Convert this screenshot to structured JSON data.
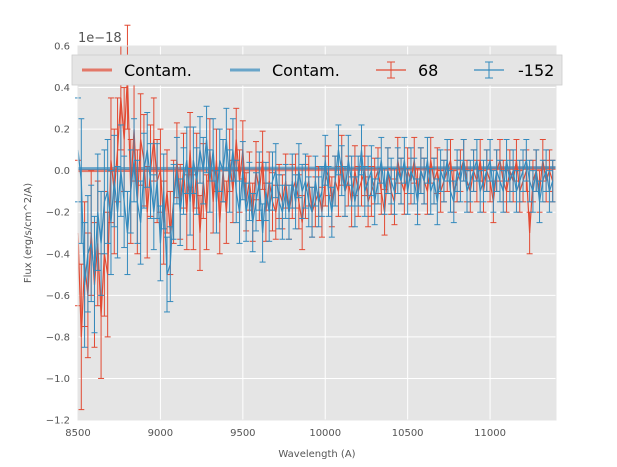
{
  "chart_data": {
    "type": "line",
    "xlabel": "Wavelength (A)",
    "ylabel": "Flux (erg/s/cm^2/A)",
    "offset_text": "1e−18",
    "xlim": [
      8500,
      11400
    ],
    "ylim": [
      -1.2,
      0.6
    ],
    "xticks": [
      8500,
      9000,
      9500,
      10000,
      10500,
      11000
    ],
    "yticks": [
      -1.2,
      -1.0,
      -0.8,
      -0.6,
      -0.4,
      -0.2,
      0.0,
      0.2,
      0.4,
      0.6
    ],
    "ytick_labels": [
      "−1.2",
      "−1.0",
      "−0.8",
      "−0.6",
      "−0.4",
      "−0.2",
      "0.0",
      "0.2",
      "0.4",
      "0.6"
    ],
    "grid": true,
    "legend_position": "top",
    "colors": {
      "red": "#E24A33",
      "blue": "#348ABD",
      "background": "#E5E5E5",
      "grid": "#FFFFFF"
    },
    "x": [
      8500,
      8520,
      8540,
      8560,
      8580,
      8600,
      8620,
      8640,
      8660,
      8680,
      8700,
      8720,
      8740,
      8760,
      8780,
      8800,
      8820,
      8840,
      8860,
      8880,
      8900,
      8920,
      8940,
      8960,
      8980,
      9000,
      9020,
      9040,
      9060,
      9080,
      9100,
      9120,
      9140,
      9160,
      9180,
      9200,
      9220,
      9240,
      9260,
      9280,
      9300,
      9320,
      9340,
      9360,
      9380,
      9400,
      9420,
      9440,
      9460,
      9480,
      9500,
      9520,
      9540,
      9560,
      9580,
      9600,
      9620,
      9640,
      9660,
      9680,
      9700,
      9720,
      9740,
      9760,
      9780,
      9800,
      9820,
      9840,
      9860,
      9880,
      9900,
      9920,
      9940,
      9960,
      9980,
      10000,
      10020,
      10040,
      10060,
      10080,
      10100,
      10120,
      10140,
      10160,
      10180,
      10200,
      10220,
      10240,
      10260,
      10280,
      10300,
      10320,
      10340,
      10360,
      10380,
      10400,
      10420,
      10440,
      10460,
      10480,
      10500,
      10520,
      10540,
      10560,
      10580,
      10600,
      10620,
      10640,
      10660,
      10680,
      10700,
      10720,
      10740,
      10760,
      10780,
      10800,
      10820,
      10840,
      10860,
      10880,
      10900,
      10920,
      10940,
      10960,
      10980,
      11000,
      11020,
      11040,
      11060,
      11080,
      11100,
      11120,
      11140,
      11160,
      11180,
      11200,
      11220,
      11240,
      11260,
      11280,
      11300,
      11320,
      11340,
      11360,
      11380
    ],
    "series": [
      {
        "name": "Contam.",
        "kind": "line",
        "color": "#E24A33",
        "x": [
          8500,
          11400
        ],
        "values": [
          0.0,
          0.01
        ]
      },
      {
        "name": "Contam.",
        "kind": "line",
        "color": "#348ABD",
        "x": [
          8500,
          11400
        ],
        "values": [
          0.01,
          0.015
        ]
      },
      {
        "name": "68",
        "kind": "errorbar",
        "color": "#E24A33",
        "values": [
          -0.3,
          -0.8,
          -0.45,
          -0.6,
          -0.3,
          -0.55,
          -0.35,
          -0.7,
          -0.4,
          -0.5,
          0.05,
          -0.1,
          0.1,
          0.35,
          0.15,
          0.45,
          -0.1,
          0.2,
          -0.15,
          0.15,
          0.05,
          -0.2,
          0.0,
          0.15,
          -0.05,
          0.0,
          -0.25,
          -0.1,
          -0.3,
          -0.15,
          0.05,
          -0.15,
          0.0,
          -0.2,
          0.1,
          -0.2,
          0.0,
          -0.3,
          -0.05,
          -0.2,
          0.1,
          -0.15,
          0.05,
          -0.25,
          0.0,
          -0.2,
          0.05,
          -0.1,
          0.15,
          -0.05,
          0.1,
          -0.15,
          -0.05,
          -0.2,
          0.0,
          -0.1,
          0.05,
          -0.2,
          -0.05,
          -0.15,
          -0.2,
          -0.1,
          -0.15,
          -0.05,
          -0.2,
          -0.1,
          -0.05,
          -0.15,
          -0.25,
          -0.1,
          -0.05,
          -0.2,
          -0.15,
          -0.1,
          -0.2,
          -0.05,
          0.0,
          -0.15,
          -0.05,
          -0.1,
          0.05,
          -0.1,
          -0.05,
          -0.15,
          0.0,
          -0.1,
          -0.05,
          0.0,
          -0.15,
          -0.1,
          -0.05,
          0.0,
          -0.1,
          -0.2,
          0.0,
          -0.1,
          -0.15,
          0.05,
          -0.05,
          -0.1,
          0.0,
          -0.05,
          0.05,
          -0.1,
          0.0,
          -0.05,
          -0.1,
          0.05,
          -0.05,
          0.0,
          -0.1,
          -0.05,
          0.0,
          0.05,
          -0.1,
          -0.05,
          0.0,
          0.05,
          -0.05,
          -0.1,
          0.0,
          -0.05,
          0.05,
          -0.1,
          0.0,
          -0.05,
          -0.15,
          0.0,
          0.05,
          -0.05,
          -0.1,
          0.0,
          -0.05,
          0.05,
          -0.1,
          -0.05,
          0.0,
          -0.3,
          -0.05,
          0.0,
          -0.1,
          0.05,
          -0.05,
          0.0,
          -0.05
        ],
        "errors": [
          0.35,
          0.35,
          0.3,
          0.3,
          0.3,
          0.3,
          0.3,
          0.3,
          0.3,
          0.3,
          0.3,
          0.3,
          0.25,
          0.25,
          0.25,
          0.25,
          0.25,
          0.25,
          0.25,
          0.22,
          0.22,
          0.22,
          0.22,
          0.2,
          0.2,
          0.2,
          0.2,
          0.2,
          0.2,
          0.2,
          0.18,
          0.18,
          0.18,
          0.18,
          0.18,
          0.18,
          0.18,
          0.18,
          0.18,
          0.18,
          0.15,
          0.15,
          0.15,
          0.15,
          0.15,
          0.15,
          0.15,
          0.15,
          0.15,
          0.15,
          0.14,
          0.14,
          0.14,
          0.14,
          0.14,
          0.14,
          0.14,
          0.14,
          0.14,
          0.14,
          0.13,
          0.13,
          0.13,
          0.13,
          0.13,
          0.13,
          0.13,
          0.13,
          0.13,
          0.13,
          0.12,
          0.12,
          0.12,
          0.12,
          0.12,
          0.12,
          0.12,
          0.12,
          0.12,
          0.12,
          0.12,
          0.12,
          0.12,
          0.12,
          0.12,
          0.12,
          0.12,
          0.12,
          0.12,
          0.12,
          0.11,
          0.11,
          0.11,
          0.11,
          0.11,
          0.11,
          0.11,
          0.11,
          0.11,
          0.11,
          0.11,
          0.11,
          0.11,
          0.11,
          0.11,
          0.11,
          0.11,
          0.11,
          0.11,
          0.11,
          0.1,
          0.1,
          0.1,
          0.1,
          0.1,
          0.1,
          0.1,
          0.1,
          0.1,
          0.1,
          0.1,
          0.1,
          0.1,
          0.1,
          0.1,
          0.1,
          0.1,
          0.1,
          0.1,
          0.1,
          0.1,
          0.1,
          0.1,
          0.1,
          0.1,
          0.1,
          0.1,
          0.1,
          0.1,
          0.1,
          0.1,
          0.1,
          0.1,
          0.1,
          0.1
        ]
      },
      {
        "name": "-152",
        "kind": "errorbar",
        "color": "#348ABD",
        "values": [
          0.1,
          -0.05,
          -0.55,
          -0.4,
          -0.35,
          -0.5,
          -0.2,
          -0.35,
          -0.15,
          -0.1,
          -0.25,
          -0.05,
          -0.2,
          0.0,
          -0.15,
          -0.3,
          -0.1,
          0.05,
          -0.15,
          -0.25,
          0.0,
          0.1,
          -0.05,
          -0.2,
          -0.05,
          -0.35,
          -0.1,
          -0.5,
          -0.45,
          -0.15,
          0.0,
          -0.2,
          -0.05,
          0.05,
          -0.15,
          0.05,
          -0.05,
          0.1,
          0.0,
          0.15,
          -0.05,
          0.1,
          -0.15,
          0.05,
          0.0,
          0.15,
          -0.05,
          0.1,
          -0.1,
          -0.2,
          0.0,
          -0.2,
          -0.1,
          -0.25,
          -0.15,
          -0.05,
          -0.3,
          -0.1,
          -0.2,
          -0.05,
          0.0,
          -0.15,
          -0.2,
          -0.1,
          -0.2,
          -0.05,
          -0.15,
          0.0,
          -0.1,
          -0.05,
          -0.15,
          -0.2,
          -0.05,
          -0.15,
          -0.1,
          0.05,
          -0.1,
          -0.2,
          -0.05,
          0.1,
          0.0,
          -0.1,
          0.05,
          -0.05,
          -0.15,
          -0.05,
          0.1,
          -0.1,
          -0.05,
          0.0,
          -0.15,
          -0.05,
          0.05,
          -0.1,
          0.0,
          -0.05,
          -0.1,
          0.0,
          -0.05,
          0.05,
          -0.1,
          0.0,
          -0.05,
          -0.15,
          0.0,
          -0.05,
          0.05,
          -0.1,
          -0.05,
          -0.15,
          0.0,
          -0.05,
          0.05,
          -0.1,
          -0.15,
          0.0,
          -0.05,
          0.05,
          -0.1,
          -0.05,
          0.0,
          0.05,
          -0.1,
          -0.05,
          0.0,
          0.05,
          -0.1,
          0.0,
          -0.05,
          -0.1,
          0.05,
          -0.05,
          0.0,
          -0.1,
          -0.05,
          0.0,
          0.05,
          -0.05,
          -0.1,
          0.0,
          -0.15,
          -0.05,
          0.0,
          -0.1,
          -0.05
        ],
        "errors": [
          0.25,
          0.3,
          0.3,
          0.28,
          0.28,
          0.28,
          0.28,
          0.25,
          0.25,
          0.25,
          0.25,
          0.22,
          0.22,
          0.22,
          0.22,
          0.2,
          0.2,
          0.2,
          0.2,
          0.2,
          0.18,
          0.18,
          0.18,
          0.18,
          0.18,
          0.18,
          0.18,
          0.18,
          0.18,
          0.18,
          0.16,
          0.16,
          0.16,
          0.16,
          0.16,
          0.16,
          0.16,
          0.16,
          0.16,
          0.16,
          0.15,
          0.15,
          0.15,
          0.15,
          0.15,
          0.15,
          0.15,
          0.15,
          0.15,
          0.15,
          0.14,
          0.14,
          0.14,
          0.14,
          0.14,
          0.14,
          0.14,
          0.14,
          0.14,
          0.14,
          0.13,
          0.13,
          0.13,
          0.13,
          0.13,
          0.13,
          0.13,
          0.13,
          0.13,
          0.13,
          0.12,
          0.12,
          0.12,
          0.12,
          0.12,
          0.12,
          0.12,
          0.12,
          0.12,
          0.12,
          0.12,
          0.12,
          0.12,
          0.12,
          0.12,
          0.12,
          0.12,
          0.12,
          0.12,
          0.12,
          0.11,
          0.11,
          0.11,
          0.11,
          0.11,
          0.11,
          0.11,
          0.11,
          0.11,
          0.11,
          0.11,
          0.11,
          0.11,
          0.11,
          0.11,
          0.11,
          0.11,
          0.11,
          0.11,
          0.11,
          0.1,
          0.1,
          0.1,
          0.1,
          0.1,
          0.1,
          0.1,
          0.1,
          0.1,
          0.1,
          0.1,
          0.1,
          0.1,
          0.1,
          0.1,
          0.1,
          0.1,
          0.1,
          0.1,
          0.1,
          0.1,
          0.1,
          0.1,
          0.1,
          0.1,
          0.1,
          0.1,
          0.1,
          0.1,
          0.1,
          0.1,
          0.1,
          0.1,
          0.1,
          0.1
        ]
      }
    ]
  }
}
